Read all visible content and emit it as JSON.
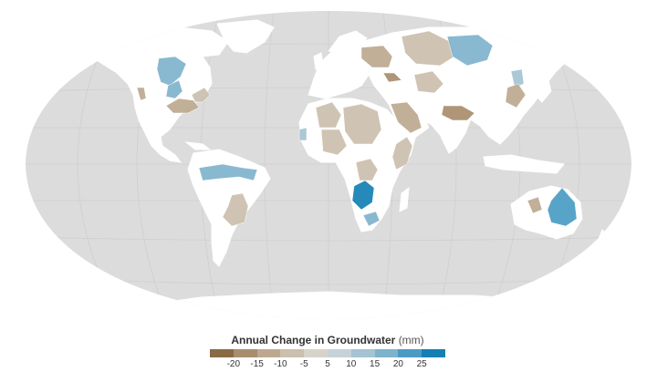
{
  "legend": {
    "title": "Annual Change in Groundwater",
    "unit": "(mm)",
    "ticks": [
      "-20",
      "-15",
      "-10",
      "-5",
      "5",
      "10",
      "15",
      "20",
      "25"
    ],
    "colors": [
      "#8a6a44",
      "#a88d6e",
      "#bca88f",
      "#cbbfad",
      "#d8d3ca",
      "#c6d2d8",
      "#a4c3d3",
      "#7fb3cc",
      "#4a9cc4",
      "#1280b4"
    ]
  },
  "map": {
    "ocean_color": "#ffffff",
    "land_color": "#ffffff",
    "graticule_fill": "#dcdcdc",
    "graticule_line": "#cfcfcf",
    "regions": [
      {
        "name": "alberta-canada",
        "value": 13
      },
      {
        "name": "great-plains-north",
        "value": 12
      },
      {
        "name": "california",
        "value": -11
      },
      {
        "name": "mississippi-south",
        "value": -13
      },
      {
        "name": "eastern-us",
        "value": -8
      },
      {
        "name": "amazon",
        "value": 10
      },
      {
        "name": "guarani-south-america",
        "value": -10
      },
      {
        "name": "europe-baltic",
        "value": -12
      },
      {
        "name": "black-sea-southern-russia",
        "value": -19
      },
      {
        "name": "western-siberia",
        "value": -9
      },
      {
        "name": "central-siberia",
        "value": 11
      },
      {
        "name": "yakutia",
        "value": 9
      },
      {
        "name": "sahara-northwest",
        "value": -8
      },
      {
        "name": "sahara-central",
        "value": -8
      },
      {
        "name": "libya-egypt",
        "value": -9
      },
      {
        "name": "arabia",
        "value": -12
      },
      {
        "name": "north-india",
        "value": -18
      },
      {
        "name": "north-china",
        "value": -11
      },
      {
        "name": "east-africa",
        "value": -9
      },
      {
        "name": "congo",
        "value": -9
      },
      {
        "name": "okavango",
        "value": 24
      },
      {
        "name": "southern-africa",
        "value": 10
      },
      {
        "name": "west-australia",
        "value": -12
      },
      {
        "name": "east-australia",
        "value": 16
      },
      {
        "name": "kazakhstan",
        "value": -7
      },
      {
        "name": "west-africa",
        "value": 6
      }
    ]
  }
}
